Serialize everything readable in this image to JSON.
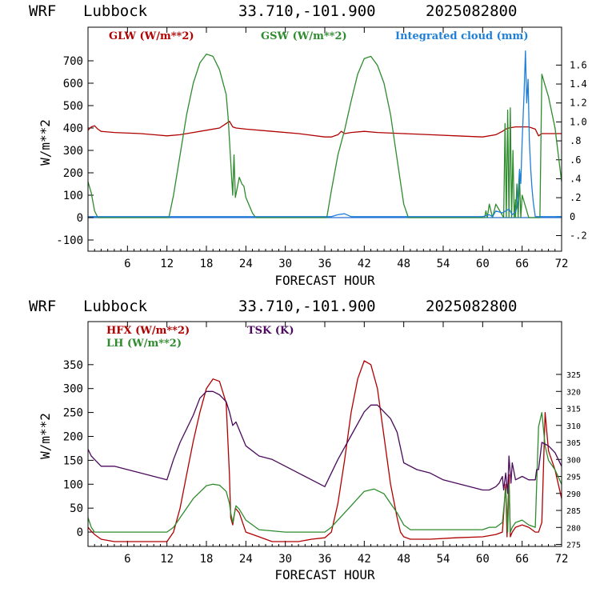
{
  "panels": [
    {
      "id": "top",
      "header": {
        "model": "WRF",
        "location": "Lubbock",
        "coords": "33.710,-101.900",
        "date": "2025082800"
      },
      "xlabel": "FORECAST HOUR",
      "ylabel_left": "W/m**2",
      "legend": [
        {
          "text": "GLW (W/m**2)",
          "color": "#b00000"
        },
        {
          "text": "GSW (W/m**2)",
          "color": "#2e8b2e"
        },
        {
          "text": "Integrated cloud (mm)",
          "color": "#1e7fd8"
        }
      ]
    },
    {
      "id": "bottom",
      "header": {
        "model": "WRF",
        "location": "Lubbock",
        "coords": "33.710,-101.900",
        "date": "2025082800"
      },
      "xlabel": "FORECAST HOUR",
      "ylabel_left": "W/m**2",
      "legend": [
        {
          "text": "HFX (W/m**2)",
          "color": "#b00000"
        },
        {
          "text": "LH  (W/m**2)",
          "color": "#2e8b2e"
        },
        {
          "text": "TSK (K)",
          "color": "#4b0a5c"
        }
      ]
    }
  ],
  "chart_data": [
    {
      "type": "line",
      "xlim": [
        0,
        72
      ],
      "x_ticks": [
        "6",
        "12",
        "18",
        "24",
        "30",
        "36",
        "42",
        "48",
        "54",
        "60",
        "66",
        "72"
      ],
      "ylim_left": [
        -150,
        850
      ],
      "y_ticks_left": [
        "-100",
        "0",
        "100",
        "200",
        "300",
        "400",
        "500",
        "600",
        "700"
      ],
      "ylim_right": [
        -0.365,
        2.0
      ],
      "y_ticks_right": [
        "-.2",
        "0",
        ".2",
        ".4",
        ".6",
        ".8",
        "1.0",
        "1.2",
        "1.4",
        "1.6"
      ],
      "grid": false,
      "series": [
        {
          "name": "GLW (W/m**2)",
          "axis": "left",
          "color": "#b00000",
          "x": [
            0,
            0.5,
            1,
            1.5,
            2,
            4,
            8,
            10,
            12,
            14,
            16,
            18,
            20,
            21,
            21.5,
            22,
            22.5,
            24,
            28,
            32,
            36,
            37,
            38,
            38.5,
            39,
            40,
            42,
            44,
            48,
            52,
            56,
            60,
            62,
            63,
            63.5,
            64,
            65,
            66,
            67,
            68,
            68.5,
            69,
            70,
            72
          ],
          "y": [
            390,
            405,
            410,
            395,
            385,
            380,
            375,
            370,
            365,
            370,
            380,
            390,
            400,
            420,
            430,
            405,
            400,
            395,
            385,
            375,
            360,
            360,
            370,
            385,
            375,
            380,
            385,
            380,
            375,
            370,
            365,
            360,
            370,
            385,
            395,
            400,
            405,
            405,
            405,
            395,
            365,
            375,
            375,
            375
          ]
        },
        {
          "name": "GSW (W/m**2)",
          "axis": "left",
          "color": "#2e8b2e",
          "x": [
            0,
            0.5,
            1,
            1.5,
            2,
            12.3,
            13,
            14,
            15,
            16,
            17,
            18,
            19,
            20,
            21,
            21.3,
            21.6,
            21.8,
            22,
            22.2,
            22.4,
            22.8,
            23,
            23.4,
            23.7,
            24,
            25,
            25.5,
            36.3,
            37,
            38,
            39,
            40,
            41,
            42,
            43,
            44,
            45,
            46,
            47,
            48,
            48.7,
            60.3,
            60.5,
            60.7,
            61,
            61.5,
            62,
            63.2,
            63.4,
            63.6,
            63.8,
            64,
            64.2,
            64.4,
            64.6,
            64.8,
            65,
            65,
            65.2,
            65.4,
            65.6,
            65.8,
            66,
            67,
            67.2,
            68.5,
            68.7,
            69,
            69.5,
            70,
            71,
            72
          ],
          "y": [
            160,
            110,
            30,
            0,
            0,
            0,
            100,
            280,
            460,
            600,
            690,
            730,
            720,
            660,
            550,
            450,
            300,
            200,
            100,
            280,
            90,
            150,
            180,
            150,
            140,
            90,
            20,
            0,
            0,
            120,
            280,
            390,
            520,
            640,
            710,
            720,
            680,
            600,
            460,
            260,
            60,
            0,
            0,
            30,
            0,
            60,
            0,
            60,
            0,
            420,
            0,
            480,
            0,
            490,
            0,
            300,
            0,
            80,
            0,
            150,
            0,
            180,
            0,
            100,
            0,
            0,
            0,
            0,
            640,
            590,
            540,
            400,
            160
          ]
        },
        {
          "name": "Integrated cloud (mm)",
          "axis": "right",
          "color": "#1e7fd8",
          "x": [
            0,
            37,
            38,
            39,
            40,
            60,
            61,
            61.5,
            62,
            63,
            64,
            64.5,
            65,
            65.2,
            65.4,
            65.6,
            65.8,
            66,
            66.3,
            66.5,
            66.7,
            66.9,
            67.1,
            67.3,
            67.5,
            67.7,
            68,
            72
          ],
          "y": [
            0,
            0,
            0.02,
            0.03,
            0,
            0,
            0.02,
            0,
            0.06,
            0.04,
            0.08,
            0.02,
            0.05,
            0.1,
            0.25,
            0.5,
            0.35,
            0.8,
            1.3,
            1.75,
            1.2,
            1.45,
            0.8,
            0.5,
            0.3,
            0.15,
            0,
            0
          ]
        }
      ]
    },
    {
      "type": "line",
      "xlim": [
        0,
        72
      ],
      "x_ticks": [
        "6",
        "12",
        "18",
        "24",
        "30",
        "36",
        "42",
        "48",
        "54",
        "60",
        "66",
        "72"
      ],
      "ylim_left": [
        -30,
        440
      ],
      "y_ticks_left": [
        "0",
        "50",
        "100",
        "150",
        "200",
        "250",
        "300",
        "350"
      ],
      "ylim_right": [
        274.42,
        340.53
      ],
      "y_ticks_right": [
        "275",
        "280",
        "285",
        "290",
        "295",
        "300",
        "305",
        "310",
        "315",
        "320",
        "325"
      ],
      "grid": false,
      "series": [
        {
          "name": "HFX (W/m**2)",
          "axis": "left",
          "color": "#b00000",
          "x": [
            0,
            0.5,
            1,
            2,
            4,
            8,
            12,
            13,
            14,
            15,
            16,
            17,
            18,
            19,
            20,
            21,
            21.5,
            21.7,
            22,
            22.4,
            23,
            24,
            26,
            28,
            30,
            32,
            34,
            36,
            37,
            38,
            39,
            40,
            41,
            42,
            43,
            44,
            45,
            46,
            47,
            47.5,
            48,
            49,
            52,
            56,
            60,
            62,
            63,
            63.5,
            63.7,
            64,
            64.2,
            64.5,
            65,
            66,
            67,
            68,
            68.5,
            69,
            69.5,
            70,
            71,
            72
          ],
          "y": [
            10,
            2,
            -5,
            -15,
            -20,
            -20,
            -20,
            0,
            50,
            120,
            190,
            250,
            300,
            320,
            315,
            270,
            120,
            30,
            15,
            50,
            40,
            0,
            -10,
            -20,
            -20,
            -20,
            -15,
            -12,
            0,
            60,
            150,
            250,
            320,
            358,
            350,
            300,
            200,
            100,
            30,
            0,
            -10,
            -15,
            -15,
            -12,
            -10,
            -5,
            0,
            100,
            -10,
            120,
            -10,
            0,
            10,
            15,
            10,
            0,
            0,
            20,
            250,
            170,
            130,
            70
          ]
        },
        {
          "name": "LH  (W/m**2)",
          "axis": "left",
          "color": "#2e8b2e",
          "x": [
            0,
            0.5,
            1,
            4,
            8,
            12,
            13,
            14,
            16,
            18,
            19,
            20,
            21,
            21.5,
            21.7,
            22,
            22.5,
            23,
            24,
            26,
            30,
            36,
            37,
            38,
            40,
            42,
            43.5,
            45,
            46,
            47,
            48,
            49,
            52,
            56,
            60,
            61,
            62,
            63,
            63.5,
            63.8,
            64,
            64.2,
            64.5,
            65,
            66,
            67,
            68,
            68.5,
            69,
            69.5,
            70,
            71,
            72
          ],
          "y": [
            30,
            10,
            0,
            0,
            0,
            0,
            10,
            30,
            70,
            97,
            100,
            98,
            85,
            60,
            40,
            20,
            55,
            48,
            25,
            5,
            0,
            0,
            10,
            25,
            55,
            85,
            90,
            80,
            60,
            40,
            15,
            5,
            5,
            5,
            5,
            10,
            10,
            20,
            90,
            0,
            100,
            0,
            10,
            20,
            25,
            15,
            10,
            220,
            250,
            180,
            150,
            130,
            100
          ]
        },
        {
          "name": "TSK (K)",
          "axis": "right",
          "color": "#4b0a5c",
          "x": [
            0,
            0.5,
            1,
            1.5,
            2,
            4,
            6,
            8,
            10,
            12,
            13,
            14,
            16,
            17,
            18,
            19,
            20,
            20.5,
            21,
            21.5,
            22,
            22.5,
            24,
            26,
            28,
            30,
            32,
            34,
            36,
            37,
            38,
            40,
            42,
            43,
            44,
            46,
            47,
            48,
            50,
            52,
            54,
            56,
            58,
            60,
            60.5,
            61,
            62,
            62.5,
            63,
            63.2,
            63.5,
            63.8,
            64,
            64.3,
            64.5,
            65,
            66,
            67,
            68,
            68.2,
            68.5,
            69,
            70,
            71,
            72
          ],
          "y": [
            303,
            301,
            300,
            299,
            298,
            298,
            297,
            296,
            295,
            294,
            300,
            305,
            313,
            318,
            320,
            320,
            319,
            318,
            317,
            314,
            310,
            311,
            304,
            301,
            300,
            298,
            296,
            294,
            292,
            296,
            300,
            307,
            314,
            316,
            316,
            312,
            308,
            299,
            297,
            296,
            294,
            293,
            292,
            291,
            291,
            291,
            292,
            293,
            295,
            291,
            296,
            290,
            301,
            293,
            299,
            294,
            295,
            294,
            294,
            297,
            297,
            305,
            304,
            302,
            298
          ]
        }
      ]
    }
  ]
}
